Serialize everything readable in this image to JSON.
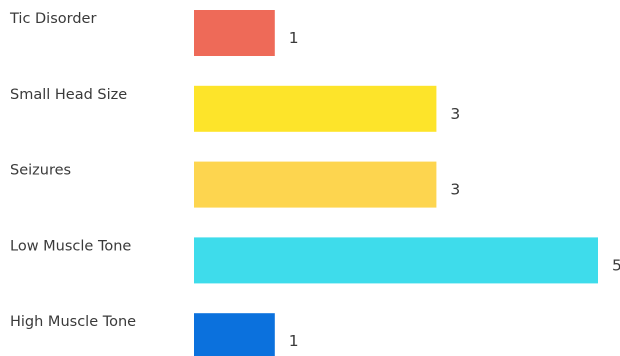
{
  "chart_data": {
    "type": "bar",
    "orientation": "horizontal",
    "title": "",
    "xlabel": "",
    "ylabel": "",
    "grid": false,
    "legend": "none",
    "xlim": [
      0,
      5
    ],
    "categories": [
      "Tic Disorder",
      "Small Head Size",
      "Seizures",
      "Low Muscle Tone",
      "High Muscle Tone"
    ],
    "values": [
      1,
      3,
      3,
      5,
      1
    ],
    "colors": [
      "#EE6A58",
      "#FDE42A",
      "#FDD54F",
      "#3EDCEB",
      "#0B71DD"
    ]
  }
}
